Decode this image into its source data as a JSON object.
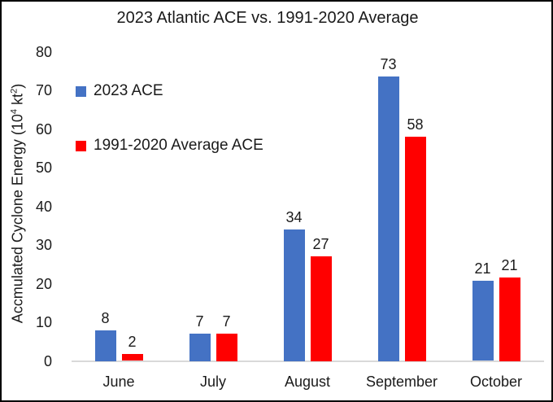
{
  "chart_data": {
    "type": "bar",
    "title": "2023 Atlantic ACE vs. 1991-2020 Average",
    "categories": [
      "June",
      "July",
      "August",
      "September",
      "October"
    ],
    "series": [
      {
        "name": "2023 ACE",
        "color": "#4472C4",
        "values": [
          8,
          7,
          34,
          73,
          21
        ],
        "plotted": [
          8,
          7,
          34,
          73.5,
          20.8
        ]
      },
      {
        "name": "1991-2020 Average ACE",
        "color": "#FF0000",
        "values": [
          2,
          7,
          27,
          58,
          21
        ],
        "plotted": [
          1.7,
          7,
          27,
          58,
          21.5
        ]
      }
    ],
    "xlabel": "",
    "ylabel": "Accmulated Cyclone Energy (10⁴ kt²)",
    "ylabel_parts": {
      "prefix": "Accmulated Cyclone Energy (10",
      "sup1": "4",
      "mid": " kt",
      "sup2": "2",
      "suffix": ")"
    },
    "ylim": [
      0,
      80
    ],
    "ytick_step": 10,
    "ytick_labels": [
      "80",
      "70",
      "60",
      "50",
      "40",
      "30",
      "20",
      "10",
      "0"
    ],
    "grid": false,
    "data_labels": true,
    "legend_position": "inside-upper-left"
  },
  "colors": {
    "bar_blue": "#4472C4",
    "bar_red": "#FF0000",
    "axis_line": "#D9D9D9",
    "text": "#1A1A1A",
    "background": "#FFFFFF",
    "frame_border": "#000000"
  }
}
